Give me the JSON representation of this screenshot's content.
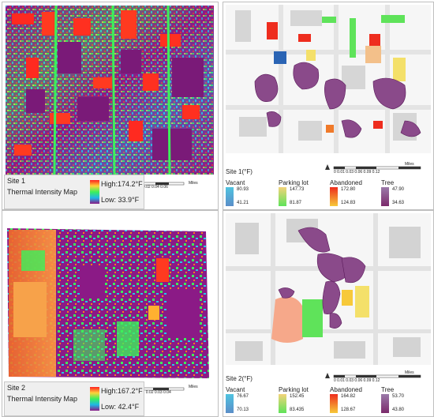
{
  "site1": {
    "thermal_panel": {
      "site_label": "Site 1",
      "map_title": "Thermal Intensity Map",
      "high_label": "High:174.2°F",
      "low_label": "Low: 33.9°F",
      "scale_labels": [
        "0",
        "0.010.02",
        "0.04",
        "0.06"
      ],
      "scale_unit": "Miles"
    },
    "landuse_panel": {
      "site_label": "Site 1(°F)",
      "scale_labels": [
        "0",
        "0.01",
        "0.03",
        "0.06",
        "0.09",
        "0.12"
      ],
      "scale_unit": "Miles",
      "legend": [
        {
          "name": "Vacant",
          "high": "80.93",
          "low": "41.21",
          "high_color": "#4fc3e0",
          "low_color": "#5b8ec9"
        },
        {
          "name": "Parking lot",
          "high": "147.73",
          "low": "81.87",
          "high_color": "#f3d37a",
          "low_color": "#5fe35a"
        },
        {
          "name": "Abandoned",
          "high": "172.80",
          "low": "124.83",
          "high_color": "#ee2d1e",
          "low_color": "#f7c93a"
        },
        {
          "name": "Tree",
          "high": "47.90",
          "low": "34.63",
          "high_color": "#9b7aa9",
          "low_color": "#7b2a6b"
        }
      ]
    }
  },
  "site2": {
    "thermal_panel": {
      "site_label": "Site 2",
      "map_title": "Thermal Intensity Map",
      "high_label": "High:167.2°F",
      "low_label": "Low: 42.4°F",
      "scale_labels": [
        "0",
        "0.0050.01",
        "0.02",
        "0.03",
        "0.04"
      ],
      "scale_unit": "Miles"
    },
    "landuse_panel": {
      "site_label": "Site 2(°F)",
      "scale_labels": [
        "0",
        "0.01",
        "0.03",
        "0.06",
        "0.09",
        "0.12"
      ],
      "scale_unit": "Miles",
      "legend": [
        {
          "name": "Vacant",
          "high": "76.67",
          "low": "70.13",
          "high_color": "#4fc3e0",
          "low_color": "#5b8ec9"
        },
        {
          "name": "Parking lot",
          "high": "152.45",
          "low": "83.435",
          "high_color": "#f3d37a",
          "low_color": "#5fe35a"
        },
        {
          "name": "Abandoned",
          "high": "164.82",
          "low": "128.67",
          "high_color": "#ee2d1e",
          "low_color": "#f7c93a"
        },
        {
          "name": "Tree",
          "high": "53.70",
          "low": "43.80",
          "high_color": "#9b7aa9",
          "low_color": "#7b2a6b"
        }
      ]
    }
  },
  "colors": {
    "thermal_high": "#ff2020",
    "thermal_mid": "#3cf05a",
    "thermal_low": "#8b1a86",
    "tree": "#8a2f7a",
    "parking": "#f4e06a",
    "vacant": "#4fc3e0",
    "abandoned": "#ee2d1e",
    "street": "#e9e9e9",
    "building": "#cfcfcf"
  }
}
